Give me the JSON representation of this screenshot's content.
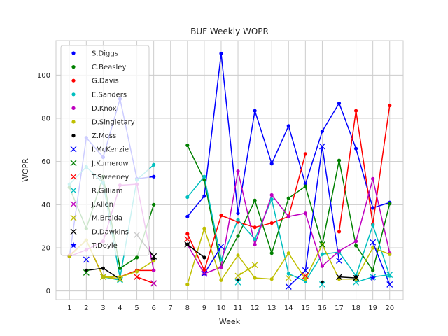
{
  "chart_data": {
    "type": "line",
    "title": "BUF Weekly WOPR",
    "xlabel": "Week",
    "ylabel": "WOPR",
    "xlim": [
      0.2,
      20.8
    ],
    "ylim": [
      -4,
      116
    ],
    "xticks": [
      1,
      2,
      3,
      4,
      5,
      6,
      7,
      8,
      9,
      10,
      11,
      12,
      13,
      14,
      15,
      16,
      17,
      18,
      19,
      20
    ],
    "yticks": [
      0,
      20,
      40,
      60,
      80,
      100
    ],
    "grid": true,
    "legend_position": "upper-left",
    "series": [
      {
        "name": "S.Diggs",
        "color": "#0000ff",
        "marker": "dot",
        "x": [
          1,
          2,
          3,
          4,
          5,
          6,
          8,
          9,
          10,
          11,
          12,
          13,
          14,
          15,
          16,
          17,
          18,
          19,
          20
        ],
        "y": [
          16,
          71,
          62,
          89,
          52,
          53,
          34.5,
          44,
          110,
          36,
          83.5,
          59,
          76.5,
          49.5,
          74,
          87,
          66,
          38.5,
          41
        ]
      },
      {
        "name": "C.Beasley",
        "color": "#008000",
        "marker": "dot",
        "x": [
          1,
          2,
          3,
          4,
          5,
          6,
          8,
          9,
          10,
          11,
          12,
          13,
          14,
          15,
          16,
          17,
          18,
          19,
          20
        ],
        "y": [
          48,
          29,
          53,
          10.5,
          15.5,
          40,
          67.5,
          51.5,
          11,
          25.5,
          42,
          17.5,
          43,
          48.5,
          21.5,
          60.5,
          21,
          9.5,
          40.5
        ]
      },
      {
        "name": "G.Davis",
        "color": "#ff0000",
        "marker": "dot",
        "x": [
          1,
          2,
          3,
          4,
          5,
          6,
          8,
          9,
          10,
          11,
          12,
          13,
          14,
          15,
          17,
          18,
          19,
          20
        ],
        "y": [
          16.5,
          23.5,
          6.5,
          6.5,
          9.5,
          9.5,
          26.5,
          9.5,
          35,
          32,
          29.5,
          31.5,
          34.5,
          63.5,
          27.5,
          83.5,
          31,
          86
        ]
      },
      {
        "name": "E.Sanders",
        "color": "#00bfbf",
        "marker": "dot",
        "x": [
          1,
          2,
          3,
          4,
          5,
          6,
          8,
          9,
          10,
          11,
          12,
          13,
          14,
          15,
          16,
          17,
          18,
          19,
          20
        ],
        "y": [
          49.5,
          57.5,
          50,
          6,
          51.5,
          58.5,
          43.5,
          53,
          14.5,
          33,
          24,
          42.5,
          8,
          4.5,
          17,
          18,
          7,
          30.5,
          7
        ]
      },
      {
        "name": "D.Knox",
        "color": "#bf00bf",
        "marker": "dot",
        "x": [
          1,
          2,
          3,
          4,
          5,
          6,
          8,
          9,
          10,
          11,
          12,
          13,
          14,
          15,
          16,
          17,
          18,
          19,
          20
        ],
        "y": [
          16,
          19,
          23,
          49,
          49.5,
          9.5,
          21.5,
          8,
          11,
          55.5,
          21.5,
          44.5,
          34.5,
          36,
          11.5,
          18.5,
          23,
          52,
          17.5
        ]
      },
      {
        "name": "D.Singletary",
        "color": "#bfbf00",
        "marker": "dot",
        "x": [
          1,
          2,
          3,
          4,
          5,
          6,
          8,
          9,
          10,
          11,
          12,
          13,
          14,
          15,
          16,
          17,
          18,
          19,
          20
        ],
        "y": [
          16,
          23.5,
          6.5,
          6.5,
          9,
          14,
          3,
          29,
          5,
          16.5,
          6,
          5.5,
          17.5,
          5.5,
          21.5,
          5.5,
          5.5,
          20,
          17
        ]
      },
      {
        "name": "Z.Moss",
        "color": "#000000",
        "marker": "dot",
        "x": [
          2,
          3,
          4,
          6,
          8,
          9,
          11,
          16,
          18
        ],
        "y": [
          9.5,
          10.5,
          5.5,
          15,
          21.5,
          15.5,
          5,
          4,
          6.5
        ]
      },
      {
        "name": "I.McKenzie",
        "color": "#0000ff",
        "marker": "x",
        "x": [
          2,
          6,
          9,
          10,
          14,
          15,
          16,
          17,
          19,
          20
        ],
        "y": [
          14.5,
          3.5,
          8,
          20.5,
          2,
          9.5,
          67,
          14,
          22.5,
          3
        ]
      },
      {
        "name": "J.Kumerow",
        "color": "#008000",
        "marker": "x",
        "x": [
          2,
          16
        ],
        "y": [
          8.5,
          21.5
        ]
      },
      {
        "name": "T.Sweeney",
        "color": "#ff0000",
        "marker": "x",
        "x": [
          5,
          6,
          8,
          15
        ],
        "y": [
          6.5,
          3.5,
          24,
          7
        ]
      },
      {
        "name": "R.Gilliam",
        "color": "#00bfbf",
        "marker": "x",
        "x": [
          3,
          4,
          11,
          16,
          18,
          19,
          20
        ],
        "y": [
          6.5,
          5,
          4,
          3,
          4,
          6.5,
          7.5
        ]
      },
      {
        "name": "J.Allen",
        "color": "#bf00bf",
        "marker": "x",
        "x": [
          6,
          9
        ],
        "y": [
          3.5,
          8.5
        ]
      },
      {
        "name": "M.Breida",
        "color": "#bfbf00",
        "marker": "x",
        "x": [
          3,
          4,
          11,
          12,
          14
        ],
        "y": [
          6.5,
          5.5,
          7,
          12,
          6
        ]
      },
      {
        "name": "D.Dawkins",
        "color": "#000000",
        "marker": "x",
        "x": [
          5,
          6,
          8,
          17,
          18
        ],
        "y": [
          26,
          16,
          21.5,
          6.5,
          6
        ]
      },
      {
        "name": "T.Doyle",
        "color": "#0000ff",
        "marker": "star",
        "x": [
          19
        ],
        "y": [
          6
        ]
      }
    ]
  }
}
